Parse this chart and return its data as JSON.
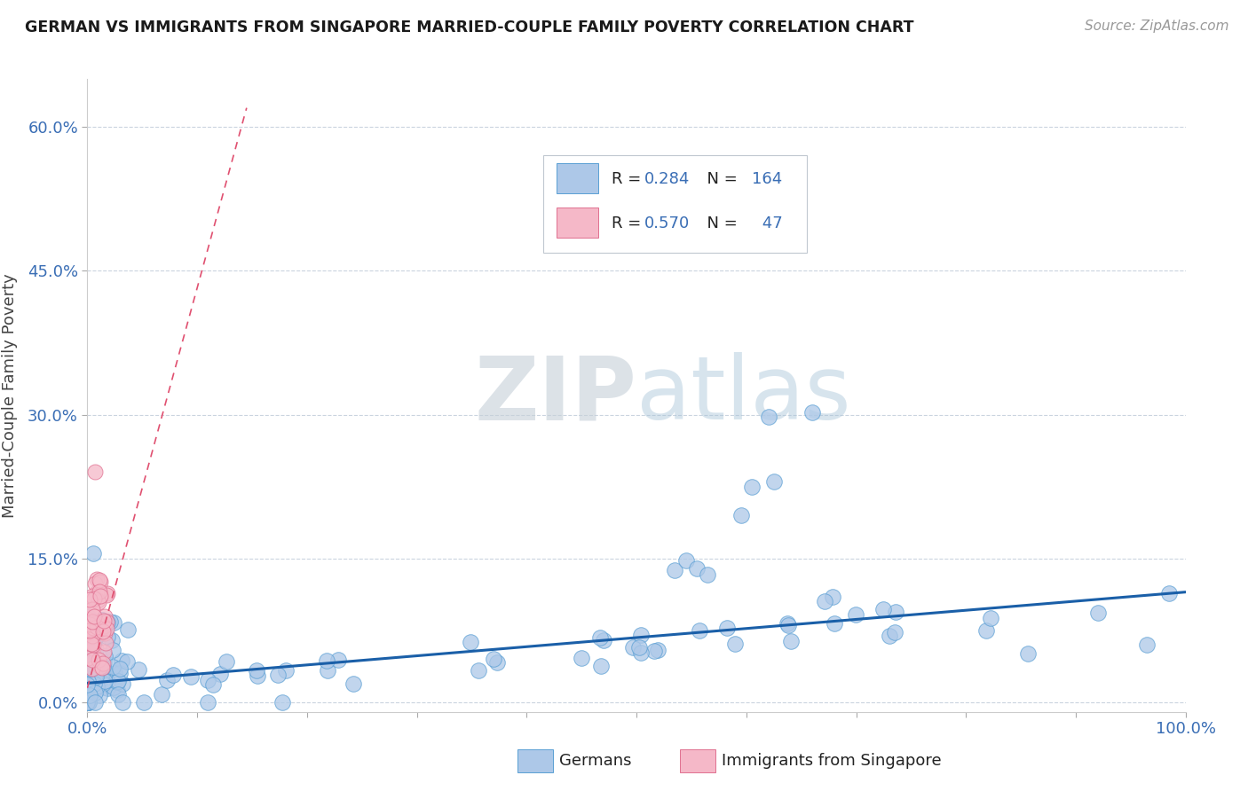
{
  "title": "GERMAN VS IMMIGRANTS FROM SINGAPORE MARRIED-COUPLE FAMILY POVERTY CORRELATION CHART",
  "source": "Source: ZipAtlas.com",
  "ylabel": "Married-Couple Family Poverty",
  "german_R": 0.284,
  "german_N": 164,
  "singapore_R": 0.57,
  "singapore_N": 47,
  "german_color": "#adc8e8",
  "german_color_edge": "#5a9fd4",
  "singapore_color": "#f5b8c8",
  "singapore_color_edge": "#e07090",
  "trend_color_german": "#1a5fa8",
  "trend_color_singapore": "#e05070",
  "watermark_color": "#d0dce8",
  "bg_color": "#ffffff",
  "xlim": [
    0.0,
    1.0
  ],
  "ylim": [
    -0.01,
    0.65
  ],
  "legend_label1": "R = 0.284   N = 164",
  "legend_label2": "R = 0.570   N =  47",
  "bottom_label1": "Germans",
  "bottom_label2": "Immigrants from Singapore"
}
